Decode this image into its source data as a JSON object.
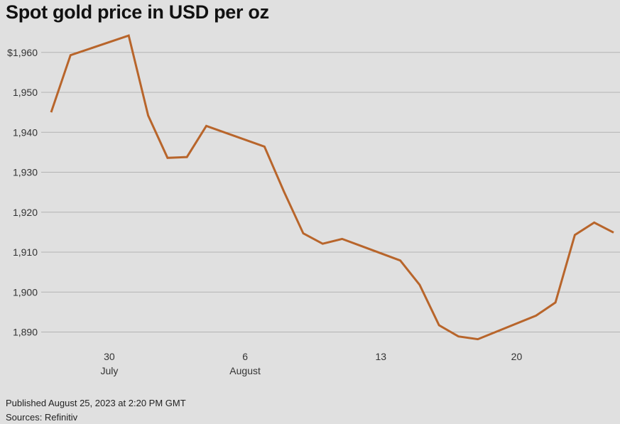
{
  "title": "Spot gold price in USD per oz",
  "published": "Published August 25, 2023 at 2:20 PM GMT",
  "sources": "Sources: Refinitiv",
  "chart_data": {
    "type": "line",
    "title": "Spot gold price in USD per oz",
    "xlabel": "",
    "ylabel": "",
    "ylim": [
      1886,
      1966
    ],
    "xlim": [
      "2023-07-27",
      "2023-08-25"
    ],
    "yticks": [
      {
        "value": 1960,
        "label": "$1,960"
      },
      {
        "value": 1950,
        "label": "1,950"
      },
      {
        "value": 1940,
        "label": "1,940"
      },
      {
        "value": 1930,
        "label": "1,930"
      },
      {
        "value": 1920,
        "label": "1,920"
      },
      {
        "value": 1910,
        "label": "1,910"
      },
      {
        "value": 1900,
        "label": "1,900"
      },
      {
        "value": 1890,
        "label": "1,890"
      }
    ],
    "xticks": [
      {
        "date": "2023-07-30",
        "label": "30",
        "sublabel": "July"
      },
      {
        "date": "2023-08-06",
        "label": "6",
        "sublabel": "August"
      },
      {
        "date": "2023-08-13",
        "label": "13",
        "sublabel": ""
      },
      {
        "date": "2023-08-20",
        "label": "20",
        "sublabel": ""
      }
    ],
    "grid": true,
    "color": "#b8652b",
    "series": [
      {
        "points": [
          {
            "x": "2023-07-27",
            "y": 1945
          },
          {
            "x": "2023-07-28",
            "y": 1959.3
          },
          {
            "x": "2023-07-31",
            "y": 1964.2
          },
          {
            "x": "2023-08-01",
            "y": 1944.2
          },
          {
            "x": "2023-08-02",
            "y": 1933.6
          },
          {
            "x": "2023-08-03",
            "y": 1933.8
          },
          {
            "x": "2023-08-04",
            "y": 1941.6
          },
          {
            "x": "2023-08-07",
            "y": 1936.4
          },
          {
            "x": "2023-08-08",
            "y": 1925.2
          },
          {
            "x": "2023-08-09",
            "y": 1914.7
          },
          {
            "x": "2023-08-10",
            "y": 1912.1
          },
          {
            "x": "2023-08-11",
            "y": 1913.3
          },
          {
            "x": "2023-08-14",
            "y": 1907.9
          },
          {
            "x": "2023-08-15",
            "y": 1901.8
          },
          {
            "x": "2023-08-16",
            "y": 1891.7
          },
          {
            "x": "2023-08-17",
            "y": 1888.9
          },
          {
            "x": "2023-08-18",
            "y": 1888.2
          },
          {
            "x": "2023-08-21",
            "y": 1894.1
          },
          {
            "x": "2023-08-22",
            "y": 1897.4
          },
          {
            "x": "2023-08-23",
            "y": 1914.3
          },
          {
            "x": "2023-08-24",
            "y": 1917.4
          },
          {
            "x": "2023-08-25",
            "y": 1914.9
          }
        ]
      }
    ]
  }
}
